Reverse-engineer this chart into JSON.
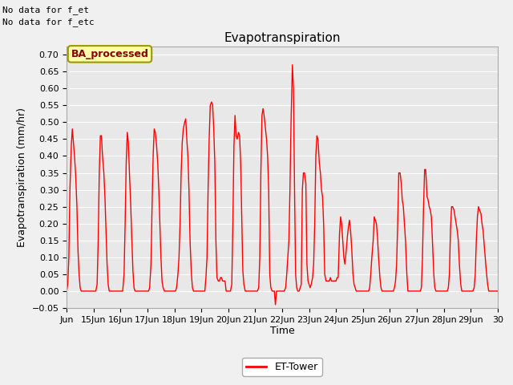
{
  "title": "Evapotranspiration",
  "xlabel": "Time",
  "ylabel": "Evapotranspiration (mm/hr)",
  "ylim": [
    -0.05,
    0.725
  ],
  "yticks": [
    -0.05,
    0.0,
    0.05,
    0.1,
    0.15,
    0.2,
    0.25,
    0.3,
    0.35,
    0.4,
    0.45,
    0.5,
    0.55,
    0.6,
    0.65,
    0.7
  ],
  "bg_color": "#e8e8e8",
  "grid_color": "#ffffff",
  "line_color": "red",
  "line_width": 1.0,
  "no_data_text": [
    "No data for f_et",
    "No data for f_etc"
  ],
  "ba_box_text": "BA_processed",
  "ba_box_facecolor": "#ffffaa",
  "ba_box_edgecolor": "#999900",
  "ba_box_textcolor": "#880000",
  "legend_label": "ET-Tower",
  "x_tick_labels": [
    "Jun",
    "15Jun",
    "16Jun",
    "17Jun",
    "18Jun",
    "19Jun",
    "20Jun",
    "21Jun",
    "22Jun",
    "23Jun",
    "24Jun",
    "25Jun",
    "26Jun",
    "27Jun",
    "28Jun",
    "29Jun",
    "30"
  ],
  "x_tick_positions": [
    0,
    1,
    2,
    3,
    4,
    5,
    6,
    7,
    8,
    9,
    10,
    11,
    12,
    13,
    14,
    15,
    16
  ],
  "data_x": [
    0.0,
    0.04,
    0.08,
    0.12,
    0.17,
    0.21,
    0.25,
    0.29,
    0.33,
    0.38,
    0.42,
    0.46,
    0.5,
    0.54,
    0.58,
    0.63,
    0.67,
    0.71,
    0.75,
    0.79,
    0.83,
    0.88,
    0.92,
    0.96,
    1.0,
    1.04,
    1.08,
    1.13,
    1.17,
    1.21,
    1.25,
    1.29,
    1.33,
    1.38,
    1.42,
    1.46,
    1.5,
    1.54,
    1.58,
    1.63,
    1.67,
    1.71,
    1.75,
    1.79,
    1.83,
    1.88,
    1.92,
    1.96,
    2.0,
    2.04,
    2.08,
    2.13,
    2.17,
    2.21,
    2.25,
    2.29,
    2.33,
    2.38,
    2.42,
    2.46,
    2.5,
    2.54,
    2.58,
    2.63,
    2.67,
    2.71,
    2.75,
    2.79,
    2.83,
    2.88,
    2.92,
    2.96,
    3.0,
    3.04,
    3.08,
    3.13,
    3.17,
    3.21,
    3.25,
    3.29,
    3.33,
    3.38,
    3.42,
    3.46,
    3.5,
    3.54,
    3.58,
    3.63,
    3.67,
    3.71,
    3.75,
    3.79,
    3.83,
    3.88,
    3.92,
    3.96,
    4.0,
    4.04,
    4.08,
    4.13,
    4.17,
    4.21,
    4.25,
    4.29,
    4.33,
    4.38,
    4.42,
    4.46,
    4.5,
    4.54,
    4.58,
    4.63,
    4.67,
    4.71,
    4.75,
    4.79,
    4.83,
    4.88,
    4.92,
    4.96,
    5.0,
    5.04,
    5.08,
    5.13,
    5.17,
    5.21,
    5.25,
    5.29,
    5.33,
    5.38,
    5.42,
    5.46,
    5.5,
    5.54,
    5.58,
    5.63,
    5.67,
    5.71,
    5.75,
    5.79,
    5.83,
    5.88,
    5.92,
    5.96,
    6.0,
    6.04,
    6.08,
    6.13,
    6.17,
    6.21,
    6.25,
    6.29,
    6.33,
    6.38,
    6.42,
    6.46,
    6.5,
    6.54,
    6.58,
    6.63,
    6.67,
    6.71,
    6.75,
    6.79,
    6.83,
    6.88,
    6.92,
    6.96,
    7.0,
    7.04,
    7.08,
    7.13,
    7.17,
    7.21,
    7.25,
    7.29,
    7.33,
    7.38,
    7.42,
    7.46,
    7.5,
    7.54,
    7.58,
    7.63,
    7.67,
    7.71,
    7.75,
    7.79,
    7.83,
    7.88,
    7.92,
    7.96,
    8.0,
    8.04,
    8.08,
    8.13,
    8.17,
    8.21,
    8.25,
    8.29,
    8.33,
    8.38,
    8.42,
    8.46,
    8.5,
    8.54,
    8.58,
    8.63,
    8.67,
    8.71,
    8.75,
    8.79,
    8.83,
    8.88,
    8.92,
    8.96,
    9.0,
    9.04,
    9.08,
    9.13,
    9.17,
    9.21,
    9.25,
    9.29,
    9.33,
    9.38,
    9.42,
    9.46,
    9.5,
    9.54,
    9.58,
    9.63,
    9.67,
    9.71,
    9.75,
    9.79,
    9.83,
    9.88,
    9.92,
    9.96,
    10.0,
    10.04,
    10.08,
    10.13,
    10.17,
    10.21,
    10.25,
    10.29,
    10.33,
    10.38,
    10.42,
    10.46,
    10.5,
    10.54,
    10.58,
    10.63,
    10.67,
    10.71,
    10.75,
    10.79,
    10.83,
    10.88,
    10.92,
    10.96,
    11.0,
    11.04,
    11.08,
    11.13,
    11.17,
    11.21,
    11.25,
    11.29,
    11.33,
    11.38,
    11.42,
    11.46,
    11.5,
    11.54,
    11.58,
    11.63,
    11.67,
    11.71,
    11.75,
    11.79,
    11.83,
    11.88,
    11.92,
    11.96,
    12.0,
    12.04,
    12.08,
    12.13,
    12.17,
    12.21,
    12.25,
    12.29,
    12.33,
    12.38,
    12.42,
    12.46,
    12.5,
    12.54,
    12.58,
    12.63,
    12.67,
    12.71,
    12.75,
    12.79,
    12.83,
    12.88,
    12.92,
    12.96,
    13.0,
    13.04,
    13.08,
    13.13,
    13.17,
    13.21,
    13.25,
    13.29,
    13.33,
    13.38,
    13.42,
    13.46,
    13.5,
    13.54,
    13.58,
    13.63,
    13.67,
    13.71,
    13.75,
    13.79,
    13.83,
    13.88,
    13.92,
    13.96,
    14.0,
    14.04,
    14.08,
    14.13,
    14.17,
    14.21,
    14.25,
    14.29,
    14.33,
    14.38,
    14.42,
    14.46,
    14.5,
    14.54,
    14.58,
    14.63,
    14.67,
    14.71,
    14.75,
    14.79,
    14.83,
    14.88,
    14.92,
    14.96,
    15.0,
    15.04,
    15.08,
    15.13,
    15.17,
    15.21,
    15.25,
    15.29,
    15.33,
    15.38,
    15.42,
    15.46,
    15.5,
    15.54,
    15.58,
    15.63,
    15.67,
    15.71,
    15.75,
    15.79,
    15.83,
    15.88,
    15.92,
    15.96,
    16.0
  ],
  "data_y": [
    0.0,
    0.02,
    0.1,
    0.3,
    0.43,
    0.48,
    0.44,
    0.4,
    0.35,
    0.25,
    0.12,
    0.05,
    0.01,
    0.0,
    0.0,
    0.0,
    0.0,
    0.0,
    0.0,
    0.0,
    0.0,
    0.0,
    0.0,
    0.0,
    0.0,
    0.0,
    0.0,
    0.02,
    0.15,
    0.35,
    0.46,
    0.46,
    0.4,
    0.35,
    0.28,
    0.18,
    0.08,
    0.02,
    0.0,
    0.0,
    0.0,
    0.0,
    0.0,
    0.0,
    0.0,
    0.0,
    0.0,
    0.0,
    0.0,
    0.0,
    0.0,
    0.05,
    0.2,
    0.38,
    0.47,
    0.44,
    0.35,
    0.25,
    0.15,
    0.06,
    0.01,
    0.0,
    0.0,
    0.0,
    0.0,
    0.0,
    0.0,
    0.0,
    0.0,
    0.0,
    0.0,
    0.0,
    0.0,
    0.0,
    0.01,
    0.08,
    0.25,
    0.4,
    0.48,
    0.47,
    0.44,
    0.38,
    0.3,
    0.2,
    0.1,
    0.03,
    0.01,
    0.0,
    0.0,
    0.0,
    0.0,
    0.0,
    0.0,
    0.0,
    0.0,
    0.0,
    0.0,
    0.0,
    0.01,
    0.05,
    0.1,
    0.2,
    0.35,
    0.44,
    0.48,
    0.5,
    0.51,
    0.45,
    0.4,
    0.3,
    0.15,
    0.05,
    0.01,
    0.0,
    0.0,
    0.0,
    0.0,
    0.0,
    0.0,
    0.0,
    0.0,
    0.0,
    0.0,
    0.0,
    0.04,
    0.1,
    0.3,
    0.45,
    0.55,
    0.56,
    0.55,
    0.48,
    0.38,
    0.15,
    0.04,
    0.03,
    0.03,
    0.04,
    0.04,
    0.03,
    0.03,
    0.03,
    0.0,
    0.0,
    0.0,
    0.0,
    0.0,
    0.02,
    0.2,
    0.43,
    0.52,
    0.46,
    0.45,
    0.47,
    0.46,
    0.38,
    0.22,
    0.06,
    0.02,
    0.0,
    0.0,
    0.0,
    0.0,
    0.0,
    0.0,
    0.0,
    0.0,
    0.0,
    0.0,
    0.0,
    0.0,
    0.01,
    0.1,
    0.35,
    0.52,
    0.54,
    0.52,
    0.48,
    0.45,
    0.4,
    0.3,
    0.05,
    0.01,
    0.0,
    0.0,
    0.0,
    -0.04,
    0.0,
    0.0,
    0.0,
    0.0,
    0.0,
    0.0,
    0.0,
    0.0,
    0.01,
    0.05,
    0.1,
    0.15,
    0.3,
    0.5,
    0.67,
    0.6,
    0.3,
    0.05,
    0.01,
    0.0,
    0.0,
    0.01,
    0.02,
    0.3,
    0.35,
    0.35,
    0.32,
    0.08,
    0.03,
    0.02,
    0.01,
    0.02,
    0.04,
    0.08,
    0.2,
    0.4,
    0.46,
    0.45,
    0.38,
    0.35,
    0.3,
    0.28,
    0.2,
    0.05,
    0.03,
    0.03,
    0.03,
    0.03,
    0.04,
    0.03,
    0.03,
    0.03,
    0.03,
    0.03,
    0.04,
    0.04,
    0.17,
    0.22,
    0.2,
    0.15,
    0.1,
    0.08,
    0.12,
    0.16,
    0.19,
    0.21,
    0.18,
    0.13,
    0.05,
    0.02,
    0.01,
    0.0,
    0.0,
    0.0,
    0.0,
    0.0,
    0.0,
    0.0,
    0.0,
    0.0,
    0.0,
    0.0,
    0.0,
    0.01,
    0.05,
    0.1,
    0.15,
    0.22,
    0.21,
    0.2,
    0.16,
    0.1,
    0.04,
    0.01,
    0.0,
    0.0,
    0.0,
    0.0,
    0.0,
    0.0,
    0.0,
    0.0,
    0.0,
    0.0,
    0.0,
    0.01,
    0.03,
    0.08,
    0.2,
    0.35,
    0.35,
    0.32,
    0.27,
    0.25,
    0.2,
    0.15,
    0.05,
    0.0,
    0.0,
    0.0,
    0.0,
    0.0,
    0.0,
    0.0,
    0.0,
    0.0,
    0.0,
    0.0,
    0.0,
    0.01,
    0.1,
    0.25,
    0.36,
    0.36,
    0.28,
    0.27,
    0.25,
    0.24,
    0.22,
    0.15,
    0.05,
    0.01,
    0.0,
    0.0,
    0.0,
    0.0,
    0.0,
    0.0,
    0.0,
    0.0,
    0.0,
    0.0,
    0.0,
    0.01,
    0.05,
    0.18,
    0.25,
    0.25,
    0.24,
    0.22,
    0.2,
    0.18,
    0.15,
    0.08,
    0.02,
    0.0,
    0.0,
    0.0,
    0.0,
    0.0,
    0.0,
    0.0,
    0.0,
    0.0,
    0.0,
    0.0,
    0.01,
    0.05,
    0.15,
    0.22,
    0.25,
    0.24,
    0.23,
    0.2,
    0.18,
    0.14,
    0.1,
    0.06,
    0.02,
    0.0,
    0.0,
    0.0,
    0.0,
    0.0,
    0.0,
    0.0,
    0.0,
    0.0
  ]
}
